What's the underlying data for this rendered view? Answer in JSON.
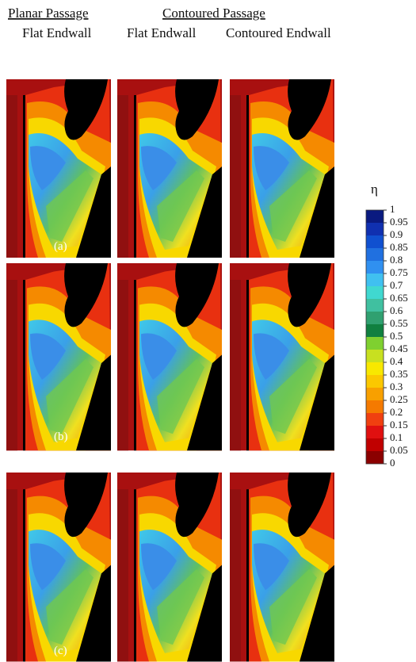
{
  "header": {
    "planar_passage": "Planar Passage",
    "contoured_passage": "Contoured Passage",
    "columns": [
      "Flat Endwall",
      "Flat Endwall",
      "Contoured Endwall"
    ]
  },
  "rows": [
    "(a)",
    "(b)",
    "(c)"
  ],
  "colorbar": {
    "title": "η",
    "ticks": [
      0,
      0.05,
      0.1,
      0.15,
      0.2,
      0.25,
      0.3,
      0.35,
      0.4,
      0.45,
      0.5,
      0.55,
      0.6,
      0.65,
      0.7,
      0.75,
      0.8,
      0.85,
      0.9,
      0.95,
      1
    ],
    "colors": [
      "#8b0000",
      "#c00000",
      "#e01010",
      "#f04010",
      "#f57a00",
      "#f8a000",
      "#fbc800",
      "#f8e800",
      "#c8e020",
      "#7fd030",
      "#108040",
      "#30a070",
      "#40c0a0",
      "#40d8d0",
      "#40c0f0",
      "#3090f0",
      "#2070e0",
      "#1050d0",
      "#1030b0",
      "#0a1a80"
    ]
  }
}
